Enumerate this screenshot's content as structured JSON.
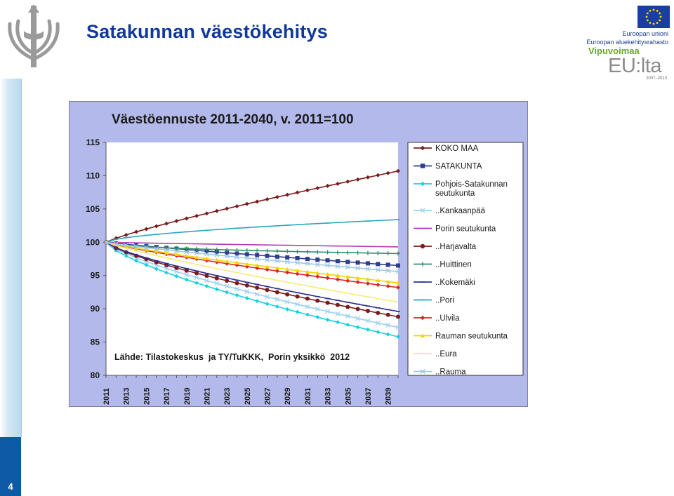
{
  "slide": {
    "title": "Satakunnan väestökehitys",
    "page_number": "4"
  },
  "branding": {
    "eu_union": "Euroopan unioni",
    "eu_fund": "Euroopan aluekehitysrahasto",
    "program": "Vipuvoimaa",
    "program_mark": "EU:lta",
    "program_years": "2007–2013"
  },
  "colors": {
    "title": "#12389a",
    "chart_background": "#b3b9ea",
    "plot_background": "#ffffff",
    "page_tab": "#0f5aa7"
  },
  "chart_data": {
    "type": "line",
    "title": "Väestöennuste 2011-2040, v. 2011=100",
    "source": "Lähde: Tilastokeskus  ja TY/TuKKK,  Porin yksikkö  2012",
    "xlabel": "",
    "ylabel": "",
    "ylim": [
      80,
      115
    ],
    "yticks": [
      80,
      85,
      90,
      95,
      100,
      105,
      110,
      115
    ],
    "xticks": [
      "2011",
      "2013",
      "2015",
      "2017",
      "2019",
      "2021",
      "2023",
      "2025",
      "2027",
      "2029",
      "2031",
      "2033",
      "2035",
      "2037",
      "2039"
    ],
    "x_range": [
      2011,
      2040
    ],
    "legend_position": "right",
    "grid": false,
    "series": [
      {
        "name": "KOKO MAA",
        "color": "#7b1b1b",
        "marker": "diamond",
        "end": 110.7,
        "curve": 0.85
      },
      {
        "name": "SATAKUNTA",
        "color": "#2e3d8f",
        "marker": "square",
        "end": 96.5,
        "curve": 0.9
      },
      {
        "name": "Pohjois-Satakunnan seutukunta",
        "color": "#17d0e0",
        "marker": "diamond",
        "end": 85.8,
        "curve": 0.72
      },
      {
        "name": "..Kankaanpää",
        "color": "#9fd0f0",
        "marker": "x",
        "end": 87.2,
        "curve": 0.75
      },
      {
        "name": "Porin seutukunta",
        "color": "#b13cb1",
        "marker": "none",
        "end": 99.3,
        "curve": 0.9
      },
      {
        "name": "..Harjavalta",
        "color": "#7b1b1b",
        "marker": "circle",
        "end": 88.8,
        "curve": 0.75
      },
      {
        "name": "..Huittinen",
        "color": "#2f8f6a",
        "marker": "plus",
        "end": 98.3,
        "curve": 0.45
      },
      {
        "name": "..Kokemäki",
        "color": "#2a2f8f",
        "marker": "dash",
        "end": 89.6,
        "curve": 0.75
      },
      {
        "name": "..Pori",
        "color": "#2aa8c0",
        "marker": "dash",
        "end": 103.4,
        "curve": 0.6
      },
      {
        "name": "..Ulvila",
        "color": "#e02020",
        "marker": "diamond",
        "end": 93.2,
        "curve": 0.85
      },
      {
        "name": "Rauman seutukunta",
        "color": "#f2d300",
        "marker": "triangle",
        "end": 93.9,
        "curve": 0.85
      },
      {
        "name": "..Eura",
        "color": "#f5ec70",
        "marker": "none",
        "end": 91.0,
        "curve": 0.85
      },
      {
        "name": "..Rauma",
        "color": "#9fc8e8",
        "marker": "x",
        "end": 95.6,
        "curve": 0.85
      }
    ]
  }
}
